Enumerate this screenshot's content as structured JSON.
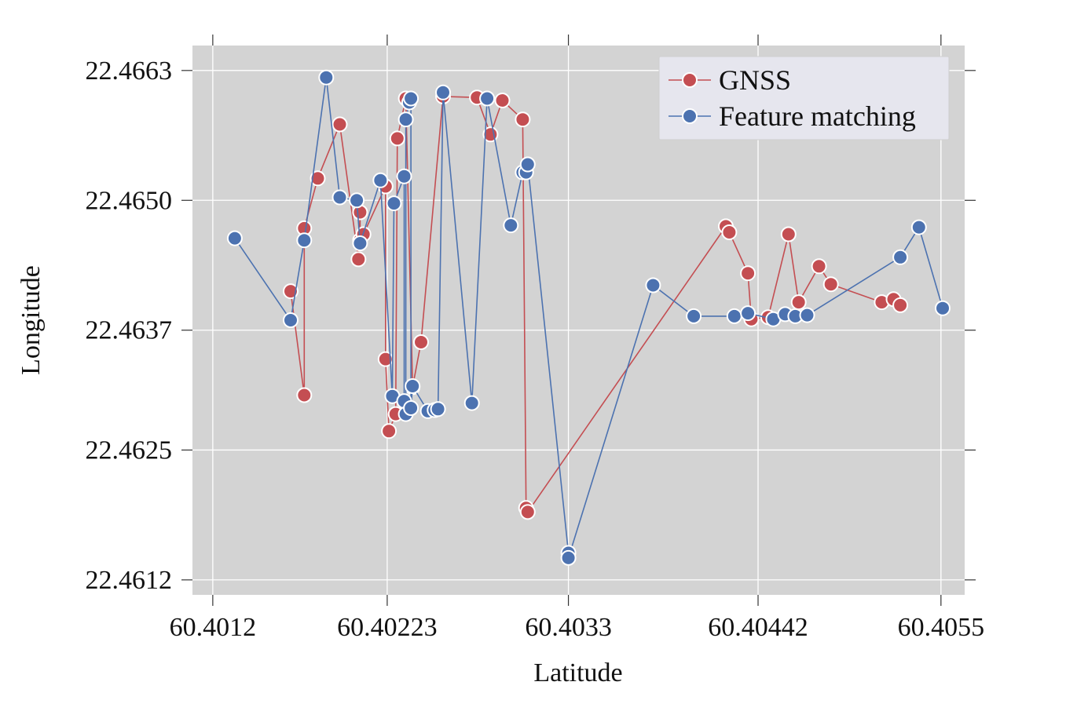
{
  "chart_data": {
    "type": "line",
    "title": "",
    "xlabel": "Latitude",
    "ylabel": "Longitude",
    "xlim": [
      60.40108,
      60.40564
    ],
    "ylim": [
      22.46105,
      22.46655
    ],
    "x_ticks": [
      {
        "value": 60.4012,
        "label": "60.4012"
      },
      {
        "value": 60.40223,
        "label": "60.40223"
      },
      {
        "value": 60.4033,
        "label": "60.4033"
      },
      {
        "value": 60.40442,
        "label": "60.40442"
      },
      {
        "value": 60.4055,
        "label": "60.4055"
      }
    ],
    "y_ticks": [
      {
        "value": 22.4612,
        "label": "22.4612"
      },
      {
        "value": 22.4625,
        "label": "22.4625"
      },
      {
        "value": 22.4637,
        "label": "22.4637"
      },
      {
        "value": 22.465,
        "label": "22.4650"
      },
      {
        "value": 22.4663,
        "label": "22.4663"
      }
    ],
    "grid": true,
    "background": "#d3d3d3",
    "legend_position": "top-right",
    "series": [
      {
        "name": "GNSS",
        "color": "#c44e52",
        "points": [
          [
            60.40166,
            22.46409
          ],
          [
            60.40174,
            22.46305
          ],
          [
            60.40174,
            22.46472
          ],
          [
            60.40182,
            22.46522
          ],
          [
            60.40195,
            22.46576
          ],
          [
            60.40206,
            22.46441
          ],
          [
            60.40207,
            22.46488
          ],
          [
            60.40207,
            22.4646
          ],
          [
            60.40209,
            22.46466
          ],
          [
            60.40222,
            22.46514
          ],
          [
            60.40222,
            22.46341
          ],
          [
            60.40224,
            22.46269
          ],
          [
            60.40228,
            22.46286
          ],
          [
            60.40229,
            22.46562
          ],
          [
            60.40234,
            22.46602
          ],
          [
            60.40238,
            22.46313
          ],
          [
            60.40243,
            22.46358
          ],
          [
            60.40256,
            22.46604
          ],
          [
            60.40276,
            22.46603
          ],
          [
            60.40284,
            22.46566
          ],
          [
            60.40291,
            22.466
          ],
          [
            60.40303,
            22.46581
          ],
          [
            60.40305,
            22.46192
          ],
          [
            60.40306,
            22.46188
          ],
          [
            60.40423,
            22.46474
          ],
          [
            60.40425,
            22.46468
          ],
          [
            60.40436,
            22.46427
          ],
          [
            60.40438,
            22.46381
          ],
          [
            60.40448,
            22.46383
          ],
          [
            60.4046,
            22.46466
          ],
          [
            60.40466,
            22.46398
          ],
          [
            60.40478,
            22.46434
          ],
          [
            60.40485,
            22.46416
          ],
          [
            60.40515,
            22.46398
          ],
          [
            60.40522,
            22.46401
          ],
          [
            60.40526,
            22.46395
          ]
        ]
      },
      {
        "name": "Feature matching",
        "color": "#4c72b0",
        "points": [
          [
            60.40133,
            22.46462
          ],
          [
            60.40166,
            22.4638
          ],
          [
            60.40174,
            22.4646
          ],
          [
            60.40187,
            22.46623
          ],
          [
            60.40195,
            22.46503
          ],
          [
            60.40205,
            22.465
          ],
          [
            60.40207,
            22.46457
          ],
          [
            60.40219,
            22.4652
          ],
          [
            60.40226,
            22.46304
          ],
          [
            60.40227,
            22.46497
          ],
          [
            60.40233,
            22.46524
          ],
          [
            60.40233,
            22.46299
          ],
          [
            60.40234,
            22.46286
          ],
          [
            60.40234,
            22.46581
          ],
          [
            60.40236,
            22.46598
          ],
          [
            60.40237,
            22.46602
          ],
          [
            60.40237,
            22.46292
          ],
          [
            60.40238,
            22.46314
          ],
          [
            60.40247,
            22.46289
          ],
          [
            60.40251,
            22.4629
          ],
          [
            60.40253,
            22.46291
          ],
          [
            60.40256,
            22.46608
          ],
          [
            60.40273,
            22.46297
          ],
          [
            60.40282,
            22.46602
          ],
          [
            60.40296,
            22.46475
          ],
          [
            60.40303,
            22.46528
          ],
          [
            60.40305,
            22.46528
          ],
          [
            60.40306,
            22.46536
          ],
          [
            60.4033,
            22.46147
          ],
          [
            60.4033,
            22.46142
          ],
          [
            60.4038,
            22.46415
          ],
          [
            60.40404,
            22.46384
          ],
          [
            60.40428,
            22.46384
          ],
          [
            60.40436,
            22.46387
          ],
          [
            60.40451,
            22.46381
          ],
          [
            60.40458,
            22.46386
          ],
          [
            60.40464,
            22.46384
          ],
          [
            60.40471,
            22.46385
          ],
          [
            60.40526,
            22.46443
          ],
          [
            60.40537,
            22.46473
          ],
          [
            60.40551,
            22.46392
          ]
        ]
      }
    ]
  }
}
